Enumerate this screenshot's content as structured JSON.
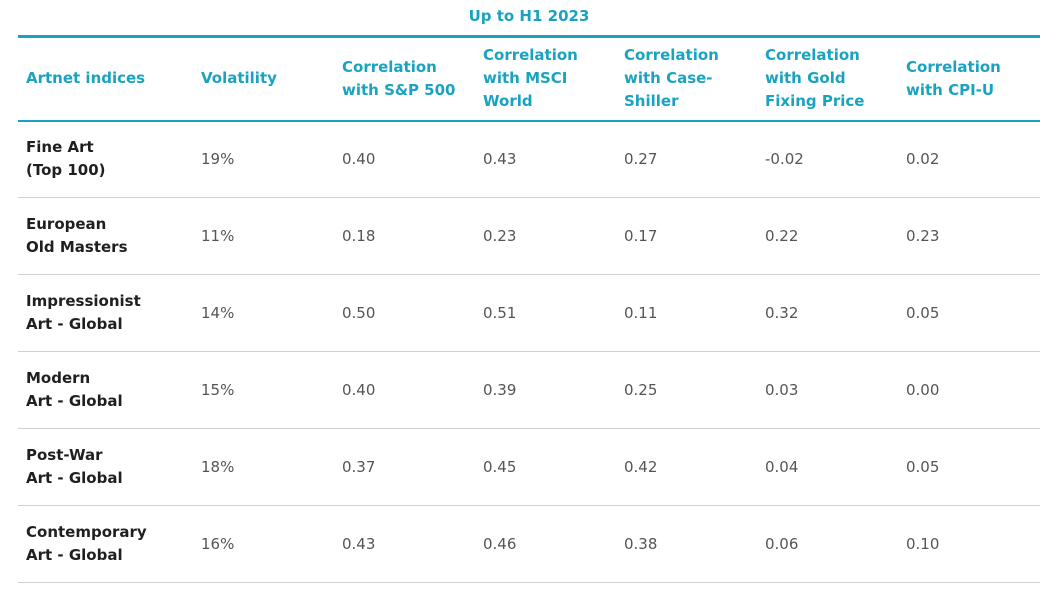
{
  "caption": "Up to H1 2023",
  "headers": [
    [
      "Artnet indices"
    ],
    [
      "Volatility"
    ],
    [
      "Correlation",
      "with S&P 500"
    ],
    [
      "Correlation",
      "with MSCI",
      "World"
    ],
    [
      "Correlation",
      "with Case-",
      "Shiller"
    ],
    [
      "Correlation",
      "with Gold",
      "Fixing Price"
    ],
    [
      "Correlation",
      "with CPI-U"
    ]
  ],
  "rows": [
    {
      "name": [
        "Fine Art",
        "(Top 100)"
      ],
      "values": [
        "19%",
        "0.40",
        "0.43",
        "0.27",
        "-0.02",
        "0.02"
      ]
    },
    {
      "name": [
        "European",
        "Old Masters"
      ],
      "values": [
        "11%",
        "0.18",
        "0.23",
        "0.17",
        "0.22",
        "0.23"
      ]
    },
    {
      "name": [
        "Impressionist",
        "Art - Global"
      ],
      "values": [
        "14%",
        "0.50",
        "0.51",
        "0.11",
        "0.32",
        "0.05"
      ]
    },
    {
      "name": [
        "Modern",
        "Art - Global"
      ],
      "values": [
        "15%",
        "0.40",
        "0.39",
        "0.25",
        "0.03",
        "0.00"
      ]
    },
    {
      "name": [
        "Post-War",
        "Art - Global"
      ],
      "values": [
        "18%",
        "0.37",
        "0.45",
        "0.42",
        "0.04",
        "0.05"
      ]
    },
    {
      "name": [
        "Contemporary",
        "Art - Global"
      ],
      "values": [
        "16%",
        "0.43",
        "0.46",
        "0.38",
        "0.06",
        "0.10"
      ]
    }
  ]
}
